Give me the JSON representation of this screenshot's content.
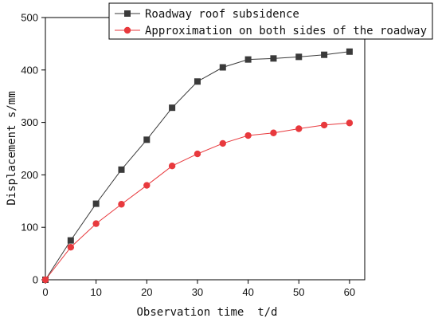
{
  "chart_data": {
    "type": "line",
    "xlabel": "Observation time  t/d",
    "ylabel": "Displacement s/mm",
    "xlim": [
      0,
      63
    ],
    "ylim": [
      0,
      500
    ],
    "x_ticks": [
      0,
      10,
      20,
      30,
      40,
      50,
      60
    ],
    "y_ticks": [
      0,
      100,
      200,
      300,
      400,
      500
    ],
    "grid": false,
    "legend_position": "top-right",
    "x": [
      0,
      5,
      10,
      15,
      20,
      25,
      30,
      35,
      40,
      45,
      50,
      55,
      60
    ],
    "series": [
      {
        "name": "Roadway roof subsidence",
        "marker": "square",
        "color": "#3a3a3a",
        "values": [
          0,
          75,
          145,
          210,
          267,
          328,
          378,
          405,
          420,
          422,
          425,
          429,
          435
        ]
      },
      {
        "name": "Approximation on both sides of the roadway",
        "marker": "circle",
        "color": "#e8393d",
        "values": [
          0,
          62,
          107,
          144,
          180,
          217,
          240,
          260,
          275,
          280,
          288,
          295,
          299
        ]
      }
    ]
  }
}
